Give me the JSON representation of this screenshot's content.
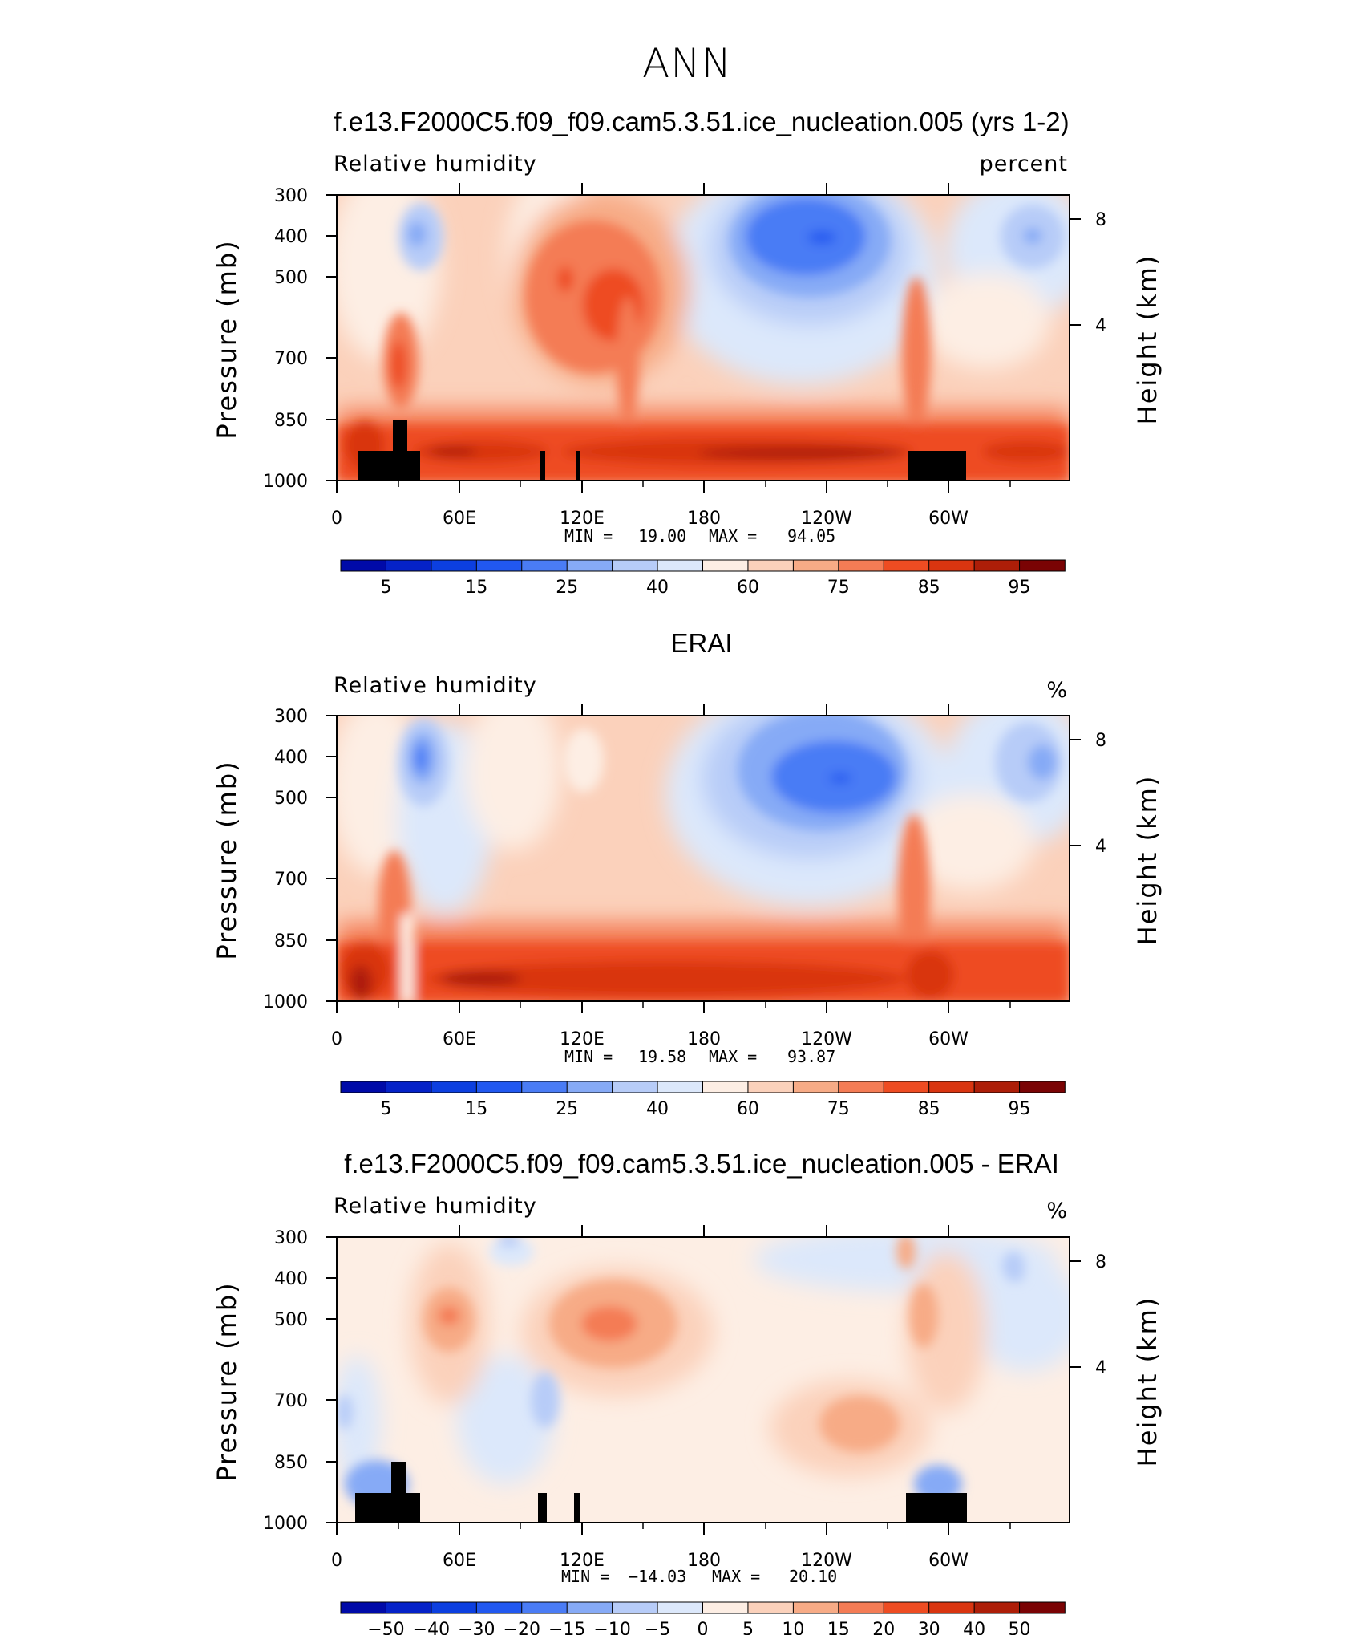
{
  "figure_title": "ANN",
  "colors": {
    "rh_scale": [
      "#000aa8",
      "#0522c8",
      "#0c3fe0",
      "#2158f0",
      "#4a7cf5",
      "#86aaf6",
      "#b7ccf8",
      "#dce8fb",
      "#fdeee4",
      "#fbd1bb",
      "#f7ab86",
      "#f47c55",
      "#ee4c22",
      "#d93510",
      "#ad1e08",
      "#7a0304"
    ],
    "diff_scale": [
      "#000aa8",
      "#0522c8",
      "#0c3fe0",
      "#2158f0",
      "#4a7cf5",
      "#86aaf6",
      "#b7ccf8",
      "#dce8fb",
      "#fdeee4",
      "#fbd1bb",
      "#f7ab86",
      "#f47c55",
      "#ee4c22",
      "#d93510",
      "#ad1e08",
      "#7a0304"
    ],
    "terrain": "#000000"
  },
  "chart_data": [
    {
      "type": "heatmap",
      "title": "f.e13.F2000C5.f09_f09.cam5.3.51.ice_nucleation.005 (yrs 1-2)",
      "left_label": "Relative humidity",
      "right_label": "percent",
      "ylabel": "Pressure (mb)",
      "ylabel_right": "Height (km)",
      "x_ticks": [
        "0",
        "60E",
        "120E",
        "180",
        "120W",
        "60W"
      ],
      "x_lim": [
        0,
        360
      ],
      "y_ticks": [
        "300",
        "400",
        "500",
        "700",
        "850",
        "1000"
      ],
      "y_lim": [
        1000,
        300
      ],
      "y_scale": "log",
      "y_right_ticks": [
        "8",
        "4"
      ],
      "min_label": "MIN =",
      "min_value": "19.00",
      "max_label": "MAX =",
      "max_value": "94.05",
      "colorbar_labels": [
        "5",
        "15",
        "25",
        "40",
        "60",
        "75",
        "85",
        "95"
      ],
      "colorbar_levels": [
        0,
        5,
        10,
        15,
        20,
        25,
        30,
        40,
        50,
        60,
        70,
        75,
        80,
        85,
        90,
        95,
        100
      ],
      "terrain_masks": [
        [
          10,
          30
        ],
        [
          28,
          36
        ],
        [
          30,
          42
        ],
        [
          100,
          104
        ],
        [
          118,
          120
        ],
        [
          282,
          310
        ]
      ]
    },
    {
      "type": "heatmap",
      "title": "ERAI",
      "left_label": "Relative humidity",
      "right_label": "%",
      "ylabel": "Pressure (mb)",
      "ylabel_right": "Height (km)",
      "x_ticks": [
        "0",
        "60E",
        "120E",
        "180",
        "120W",
        "60W"
      ],
      "x_lim": [
        0,
        360
      ],
      "y_ticks": [
        "300",
        "400",
        "500",
        "700",
        "850",
        "1000"
      ],
      "y_lim": [
        1000,
        300
      ],
      "y_scale": "log",
      "y_right_ticks": [
        "8",
        "4"
      ],
      "min_label": "MIN =",
      "min_value": "19.58",
      "max_label": "MAX =",
      "max_value": "93.87",
      "colorbar_labels": [
        "5",
        "15",
        "25",
        "40",
        "60",
        "75",
        "85",
        "95"
      ],
      "colorbar_levels": [
        0,
        5,
        10,
        15,
        20,
        25,
        30,
        40,
        50,
        60,
        70,
        75,
        80,
        85,
        90,
        95,
        100
      ],
      "terrain_masks": []
    },
    {
      "type": "heatmap",
      "title": "f.e13.F2000C5.f09_f09.cam5.3.51.ice_nucleation.005 - ERAI",
      "left_label": "Relative humidity",
      "right_label": "%",
      "ylabel": "Pressure (mb)",
      "ylabel_right": "Height (km)",
      "x_ticks": [
        "0",
        "60E",
        "120E",
        "180",
        "120W",
        "60W"
      ],
      "x_lim": [
        0,
        360
      ],
      "y_ticks": [
        "300",
        "400",
        "500",
        "700",
        "850",
        "1000"
      ],
      "y_lim": [
        1000,
        300
      ],
      "y_scale": "log",
      "y_right_ticks": [
        "8",
        "4"
      ],
      "min_label": "MIN =",
      "min_value": "−14.03",
      "max_label": "MAX =",
      "max_value": "20.10",
      "colorbar_labels": [
        "−50",
        "−40",
        "−30",
        "−20",
        "−15",
        "−10",
        "−5",
        "0",
        "5",
        "10",
        "15",
        "20",
        "30",
        "40",
        "50"
      ],
      "colorbar_levels": [
        -60,
        -50,
        -40,
        -30,
        -20,
        -15,
        -10,
        -5,
        0,
        5,
        10,
        15,
        20,
        30,
        40,
        50,
        60
      ],
      "terrain_masks": [
        [
          10,
          30
        ],
        [
          28,
          36
        ],
        [
          30,
          42
        ],
        [
          100,
          104
        ],
        [
          118,
          120
        ],
        [
          282,
          310
        ]
      ]
    }
  ]
}
